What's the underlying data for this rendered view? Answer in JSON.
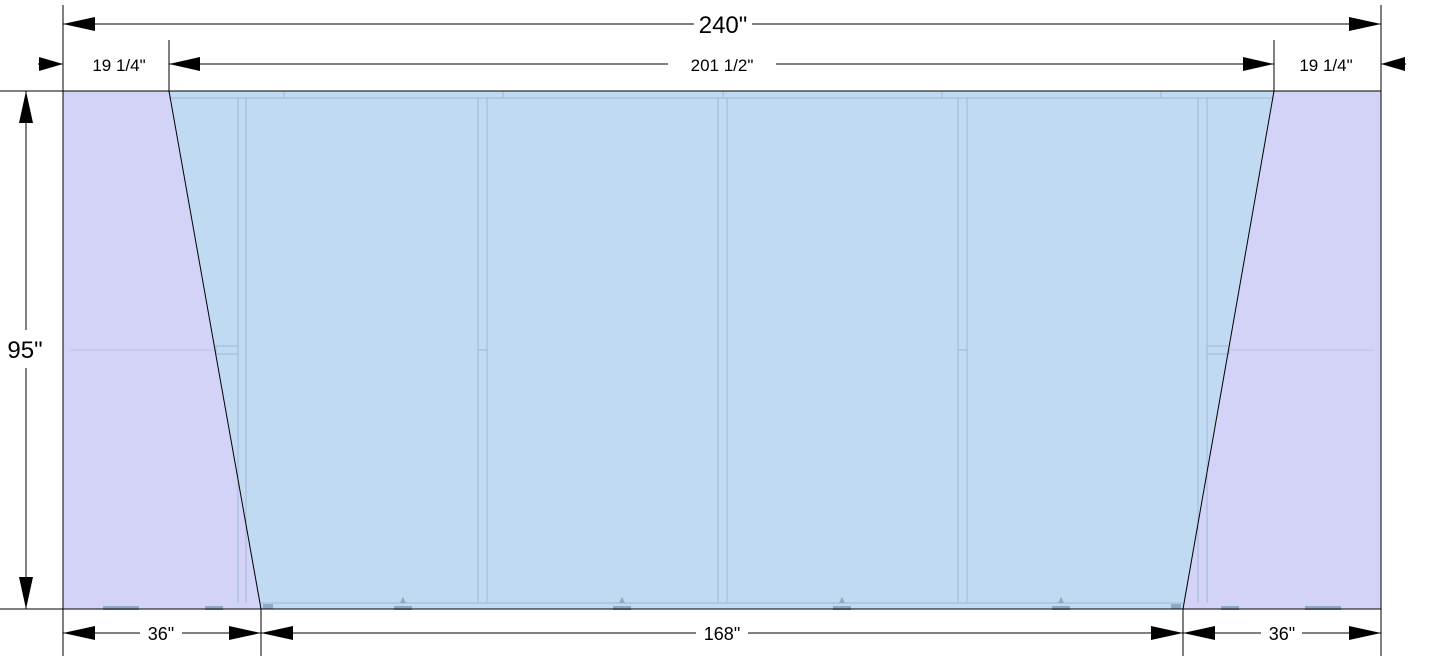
{
  "dimensions": {
    "overall_width": "240\"",
    "top_left_offset": "19 1/4\"",
    "top_middle_span": "201 1/2\"",
    "top_right_offset": "19 1/4\"",
    "height": "95\"",
    "bottom_left_offset": "36\"",
    "bottom_middle_span": "168\"",
    "bottom_right_offset": "36\""
  },
  "colors": {
    "end_panel_fill": "#d3d3f8",
    "center_panel_fill": "#c0daf2",
    "frame_line": "#9fb7d6",
    "outline": "#000000"
  }
}
